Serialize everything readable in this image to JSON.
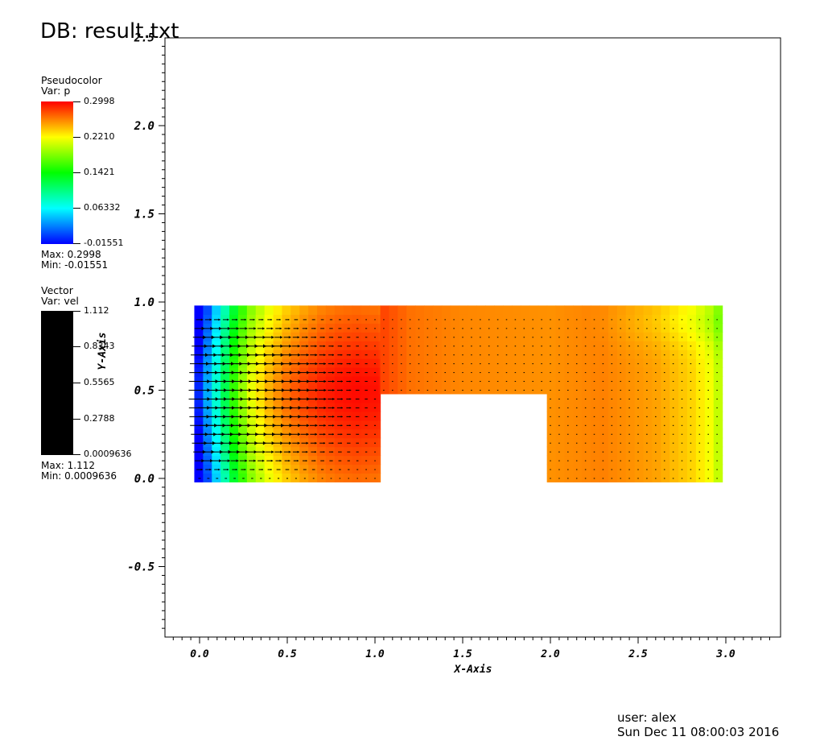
{
  "title": "DB: result.txt",
  "legend_pseudocolor": {
    "type_label": "Pseudocolor",
    "var_label": "Var: p",
    "ticks": [
      "0.2998",
      "0.2210",
      "0.1421",
      "0.06332",
      "-0.01551"
    ],
    "max_label": "Max:  0.2998",
    "min_label": "Min: -0.01551"
  },
  "legend_vector": {
    "type_label": "Vector",
    "var_label": "Var: vel",
    "ticks": [
      "1.112",
      "0.8343",
      "0.5565",
      "0.2788",
      "0.0009636"
    ],
    "max_label": "Max:  1.112",
    "min_label": "Min:  0.0009636"
  },
  "chart_data": {
    "type": "heatmap",
    "title": "DB: result.txt",
    "xlabel": "X-Axis",
    "ylabel": "Y-Axis",
    "xlim": [
      -0.2,
      3.3
    ],
    "ylim": [
      -0.9,
      2.5
    ],
    "x_ticks": [
      "0.0",
      "0.5",
      "1.0",
      "1.5",
      "2.0",
      "2.5",
      "3.0"
    ],
    "y_ticks": [
      "-0.5",
      "0.0",
      "0.5",
      "1.0",
      "1.5",
      "2.0",
      "2.5"
    ],
    "grid": false,
    "colormap": [
      "#0000ff",
      "#00ffff",
      "#00ff00",
      "#ffff00",
      "#ff0000"
    ],
    "scalar_variable": "p",
    "scalar_range": [
      -0.01551,
      0.2998
    ],
    "vector_variable": "vel",
    "vector_range": [
      0.0009636,
      1.112
    ],
    "domain_regions": [
      {
        "x": [
          -0.03,
          1.03
        ],
        "y": [
          -0.02,
          0.98
        ]
      },
      {
        "x": [
          1.03,
          1.98
        ],
        "y": [
          0.48,
          0.98
        ]
      },
      {
        "x": [
          1.98,
          2.98
        ],
        "y": [
          -0.02,
          0.98
        ]
      }
    ],
    "pressure_profile_x": [
      0.0,
      0.05,
      0.1,
      0.15,
      0.2,
      0.25,
      0.3,
      0.35,
      0.4,
      0.45,
      0.5,
      0.6,
      0.7,
      0.8,
      0.9,
      1.0,
      1.2,
      1.5,
      2.0,
      2.3,
      2.6,
      2.8,
      2.9,
      2.98
    ],
    "pressure_profile_p": [
      -0.015,
      0.03,
      0.07,
      0.11,
      0.15,
      0.18,
      0.205,
      0.22,
      0.235,
      0.245,
      0.255,
      0.268,
      0.278,
      0.283,
      0.285,
      0.283,
      0.265,
      0.258,
      0.255,
      0.26,
      0.25,
      0.235,
      0.22,
      0.195
    ]
  },
  "footer": {
    "user": "user: alex",
    "timestamp": "Sun Dec 11 08:00:03 2016"
  }
}
